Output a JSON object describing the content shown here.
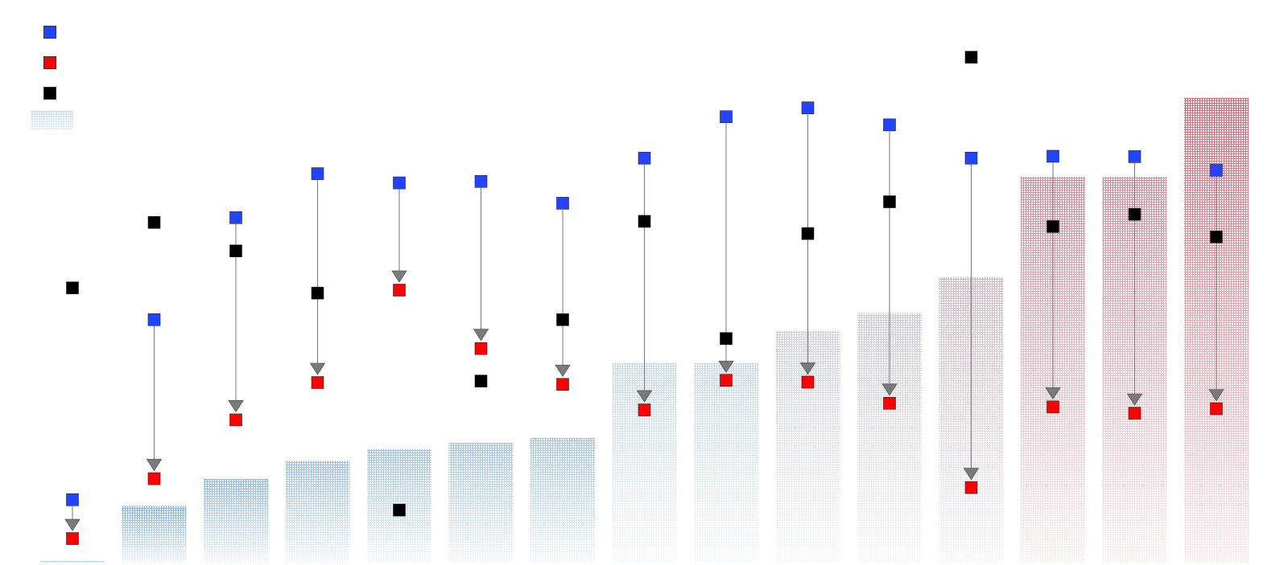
{
  "chart_data": {
    "type": "bar",
    "categories": [
      "",
      "",
      "",
      "",
      "",
      "",
      "",
      "",
      "",
      "",
      "",
      "",
      "",
      "",
      ""
    ],
    "series": [
      {
        "values": [
          0.3,
          15.3,
          22.6,
          27.5,
          30.7,
          32.4,
          33.7,
          53.9,
          53.9,
          62.7,
          67.5,
          77.2,
          104.3,
          104.3,
          125.7
        ]
      },
      {
        "marker": "blue-square",
        "values": [
          17.0,
          65.7,
          93.3,
          105.2,
          102.7,
          103.1,
          97.2,
          109.4,
          120.6,
          123.0,
          118.4,
          109.4,
          109.9,
          109.8,
          106.1
        ]
      },
      {
        "marker": "red-square",
        "values": [
          6.5,
          22.7,
          38.6,
          48.7,
          73.7,
          57.9,
          48.2,
          41.3,
          49.3,
          48.8,
          43.1,
          20.3,
          42.1,
          40.4,
          41.6
        ]
      },
      {
        "marker": "black-square",
        "values": [
          74.3,
          92.0,
          84.3,
          72.9,
          14.2,
          49.1,
          65.7,
          92.3,
          60.6,
          89.0,
          97.6,
          136.7,
          90.9,
          94.2,
          88.1
        ]
      }
    ],
    "ylim": [
      0,
      140
    ],
    "grid": false,
    "legend_position": "top-left",
    "colors": {
      "blue_marker": "#2244ff",
      "red_marker": "#ff0000",
      "black_marker": "#000000",
      "arrow": "#777777",
      "arrow_head": "#7a7a7a",
      "bar_low": "#5fa0e8",
      "bar_mid": "#c9dceb",
      "bar_high": "#e06070"
    },
    "legend": [
      {
        "kind": "square",
        "color": "#2244ff"
      },
      {
        "kind": "square",
        "color": "#ff0000"
      },
      {
        "kind": "square",
        "color": "#000000"
      },
      {
        "kind": "bar-patch",
        "color": "#c9dceb"
      }
    ]
  }
}
